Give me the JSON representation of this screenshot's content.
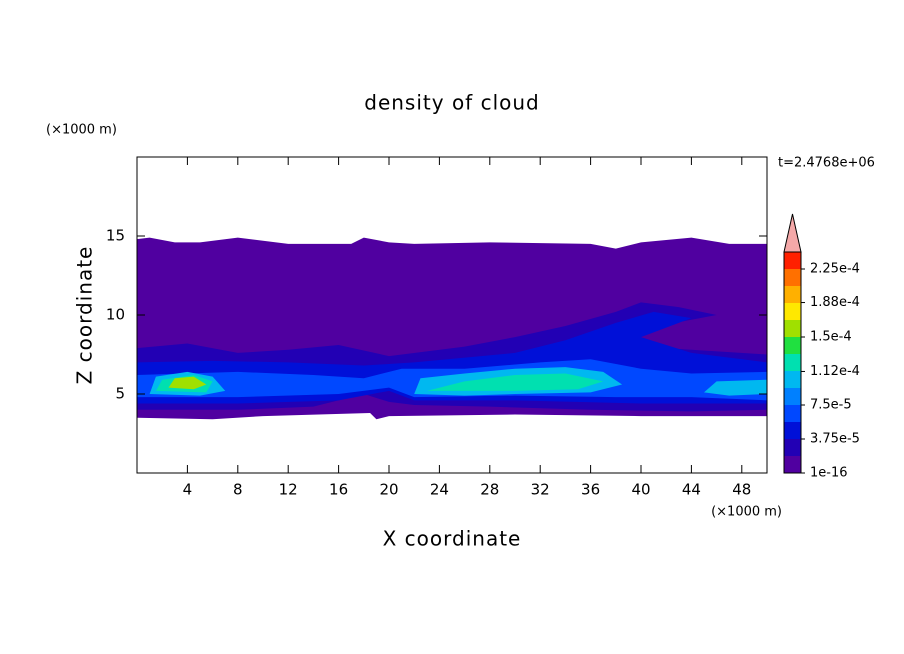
{
  "chart_data": {
    "type": "contour",
    "title": "density of cloud",
    "x_label": "X coordinate",
    "y_label": "Z coordinate",
    "x_unit": "(×1000 m)",
    "y_unit": "(×1000 m)",
    "annotation": "t=2.4768e+06",
    "xlim": [
      0,
      50
    ],
    "ylim": [
      0,
      20
    ],
    "xticks": [
      4,
      8,
      12,
      16,
      20,
      24,
      28,
      32,
      36,
      40,
      44,
      48
    ],
    "yticks": [
      5,
      10,
      15
    ],
    "colorbar": {
      "levels": [
        1e-16,
        1.875e-05,
        3.75e-05,
        5.625e-05,
        7.5e-05,
        9.375e-05,
        0.0001125,
        0.00013125,
        0.00015,
        0.00016875,
        0.0001875,
        0.00020625,
        0.000225,
        0.00024375
      ],
      "colors": [
        "#5000a0",
        "#2200b4",
        "#0010d8",
        "#0048ff",
        "#0080ff",
        "#00b8f0",
        "#00e0b0",
        "#20e040",
        "#a0e000",
        "#ffe800",
        "#ffb000",
        "#ff7000",
        "#ff2000"
      ],
      "extend_color": "#f4a8a8",
      "ticks": [
        {
          "value": 1e-16,
          "label": "1e-16"
        },
        {
          "value": 3.75e-05,
          "label": "3.75e-5"
        },
        {
          "value": 7.5e-05,
          "label": "7.5e-5"
        },
        {
          "value": 0.000112,
          "label": "1.12e-4"
        },
        {
          "value": 0.00015,
          "label": "1.5e-4"
        },
        {
          "value": 0.000188,
          "label": "1.88e-4"
        },
        {
          "value": 0.000225,
          "label": "2.25e-4"
        }
      ]
    }
  }
}
